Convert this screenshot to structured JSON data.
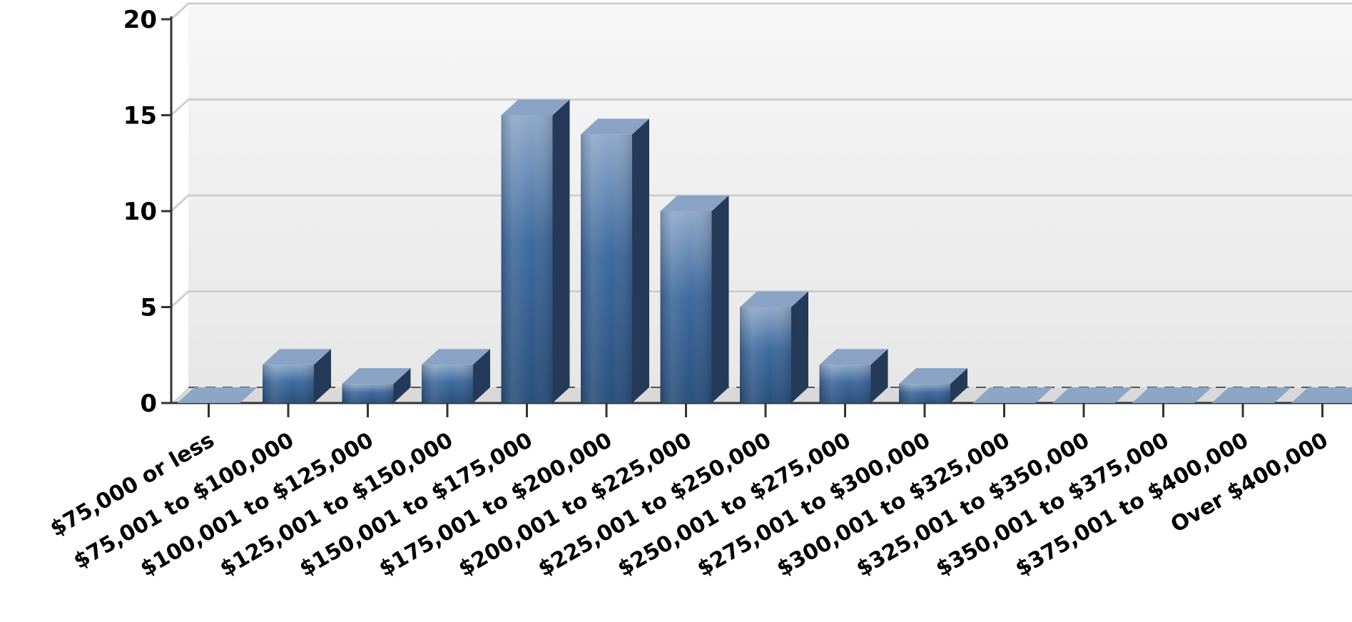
{
  "chart_data": {
    "type": "bar",
    "title": "",
    "xlabel": "",
    "ylabel": "",
    "ylim": [
      0,
      20
    ],
    "yticks": [
      0,
      5,
      10,
      15,
      20
    ],
    "grid": true,
    "style": "3d",
    "categories": [
      "$75,000 or less",
      "$75,001 to $100,000",
      "$100,001 to $125,000",
      "$125,001 to $150,000",
      "$150,001 to $175,000",
      "$175,001 to $200,000",
      "$200,001 to $225,000",
      "$225,001 to $250,000",
      "$250,001 to $275,000",
      "$275,001 to $300,000",
      "$300,001 to $325,000",
      "$325,001 to $350,000",
      "$350,001 to $375,000",
      "$375,001 to $400,000",
      "Over $400,000"
    ],
    "values": [
      0,
      2,
      1,
      2,
      15,
      14,
      10,
      5,
      2,
      1,
      0,
      0,
      0,
      0,
      0
    ],
    "colors": {
      "bar_front_top": "#8fa9c8",
      "bar_front_mid": "#3f6a9e",
      "bar_front_bottom": "#2a4f7c",
      "bar_top": "#8aa3c4",
      "bar_side": "#243a58",
      "zero_bar": "#8ca6c6",
      "grid": "#cfcfcf",
      "axis": "#333333"
    }
  }
}
